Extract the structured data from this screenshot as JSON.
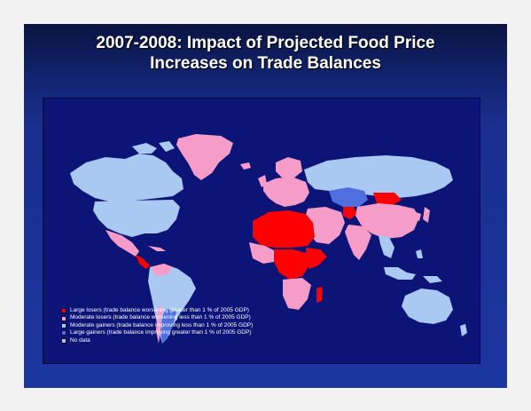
{
  "slide": {
    "title_line1": "2007-2008: Impact of Projected Food Price",
    "title_line2": "Increases on Trade Balances"
  },
  "legend": {
    "items": [
      {
        "label": "Large losers (trade balance worsening greater than 1 % of 2005 GDP)",
        "color": "#ff0000",
        "name": "large-losers"
      },
      {
        "label": "Moderate losers (trade balance worsening less than 1 % of 2005 GDP)",
        "color": "#f59cc8",
        "name": "moderate-losers"
      },
      {
        "label": "Moderate gainers (trade balance improving less than 1 % of 2005 GDP)",
        "color": "#a9c8f2",
        "name": "moderate-gainers"
      },
      {
        "label": "Large gainers (trade balance improving greater than 1 % of 2005 GDP)",
        "color": "#4f6fe0",
        "name": "large-gainers"
      },
      {
        "label": "No data",
        "color": "#c0c0c0",
        "name": "no-data"
      }
    ]
  },
  "colors": {
    "ocean": "#0c1478",
    "large_losers": "#ff0000",
    "moderate_losers": "#f59cc8",
    "moderate_gainers": "#a9c8f2",
    "large_gainers": "#4f6fe0",
    "no_data": "#c0c0c0"
  }
}
